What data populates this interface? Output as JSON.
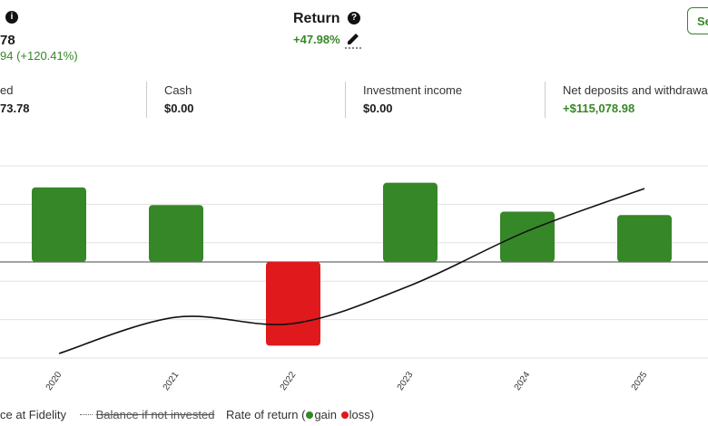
{
  "summary": {
    "balance": "78",
    "balance_change": "94 (+120.41%)",
    "return_title": "Return",
    "return_value": "+47.98%",
    "button": "Se"
  },
  "stats": [
    {
      "label": "ed",
      "value": "73.78"
    },
    {
      "label": "Cash",
      "value": "$0.00"
    },
    {
      "label": "Investment income",
      "value": "$0.00"
    },
    {
      "label": "Net deposits and withdrawa",
      "value": "+$115,078.98"
    }
  ],
  "chart_data": {
    "type": "bar",
    "categories": [
      "2020",
      "2021",
      "2022",
      "2023",
      "2024",
      "2025"
    ],
    "ylim": [
      -25,
      25
    ],
    "y2lim": [
      40000,
      200000
    ],
    "y2ticks": [
      40000,
      72000,
      104000,
      136000,
      168000,
      200000
    ],
    "grid": true,
    "gain_color": "#368727",
    "loss_color": "#e0191c",
    "gain_label": "gain",
    "loss_label": "loss)",
    "legend_hidden": "Balance if not invested",
    "series": [
      {
        "name": "ce at Fidelity",
        "type": "line",
        "axis": "y2",
        "color": "#111111",
        "values": [
          43800,
          74000,
          68700,
          100400,
          145700,
          181100
        ]
      },
      {
        "name": "Rate of return (",
        "type": "bar",
        "values": [
          19.4,
          14.8,
          -21.8,
          20.6,
          13.1,
          12.2
        ]
      }
    ]
  }
}
